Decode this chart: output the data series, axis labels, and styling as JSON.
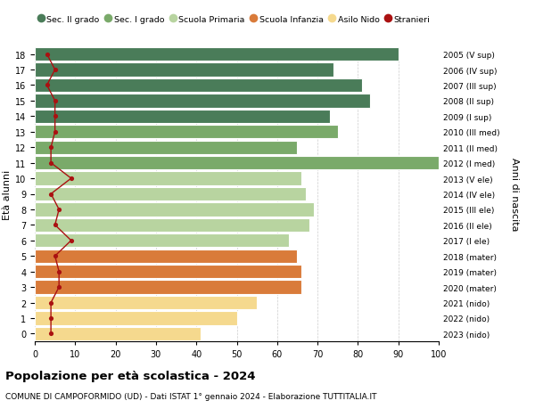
{
  "ages": [
    18,
    17,
    16,
    15,
    14,
    13,
    12,
    11,
    10,
    9,
    8,
    7,
    6,
    5,
    4,
    3,
    2,
    1,
    0
  ],
  "years": [
    "2005 (V sup)",
    "2006 (IV sup)",
    "2007 (III sup)",
    "2008 (II sup)",
    "2009 (I sup)",
    "2010 (III med)",
    "2011 (II med)",
    "2012 (I med)",
    "2013 (V ele)",
    "2014 (IV ele)",
    "2015 (III ele)",
    "2016 (II ele)",
    "2017 (I ele)",
    "2018 (mater)",
    "2019 (mater)",
    "2020 (mater)",
    "2021 (nido)",
    "2022 (nido)",
    "2023 (nido)"
  ],
  "bar_values": [
    90,
    74,
    81,
    83,
    73,
    75,
    65,
    100,
    66,
    67,
    69,
    68,
    63,
    65,
    66,
    66,
    55,
    50,
    41
  ],
  "stranieri": [
    3,
    5,
    3,
    5,
    5,
    5,
    4,
    4,
    9,
    4,
    6,
    5,
    9,
    5,
    6,
    6,
    4,
    4,
    4
  ],
  "bar_colors": [
    "#4a7c59",
    "#4a7c59",
    "#4a7c59",
    "#4a7c59",
    "#4a7c59",
    "#7aaa6a",
    "#7aaa6a",
    "#7aaa6a",
    "#b8d4a0",
    "#b8d4a0",
    "#b8d4a0",
    "#b8d4a0",
    "#b8d4a0",
    "#d97b3a",
    "#d97b3a",
    "#d97b3a",
    "#f5d98e",
    "#f5d98e",
    "#f5d98e"
  ],
  "colors": {
    "sec2": "#4a7c59",
    "sec1": "#7aaa6a",
    "primaria": "#b8d4a0",
    "infanzia": "#d97b3a",
    "nido": "#f5d98e",
    "stranieri": "#aa1111"
  },
  "legend_labels": [
    "Sec. II grado",
    "Sec. I grado",
    "Scuola Primaria",
    "Scuola Infanzia",
    "Asilo Nido",
    "Stranieri"
  ],
  "legend_colors_list": [
    "#4a7c59",
    "#7aaa6a",
    "#b8d4a0",
    "#d97b3a",
    "#f5d98e",
    "#aa1111"
  ],
  "xlabel_right": "Anni di nascita",
  "ylabel_left": "Età alunni",
  "xlim": [
    0,
    100
  ],
  "title": "Popolazione per età scolastica - 2024",
  "subtitle": "COMUNE DI CAMPOFORMIDO (UD) - Dati ISTAT 1° gennaio 2024 - Elaborazione TUTTITALIA.IT",
  "background_color": "#ffffff",
  "grid_color": "#cccccc"
}
